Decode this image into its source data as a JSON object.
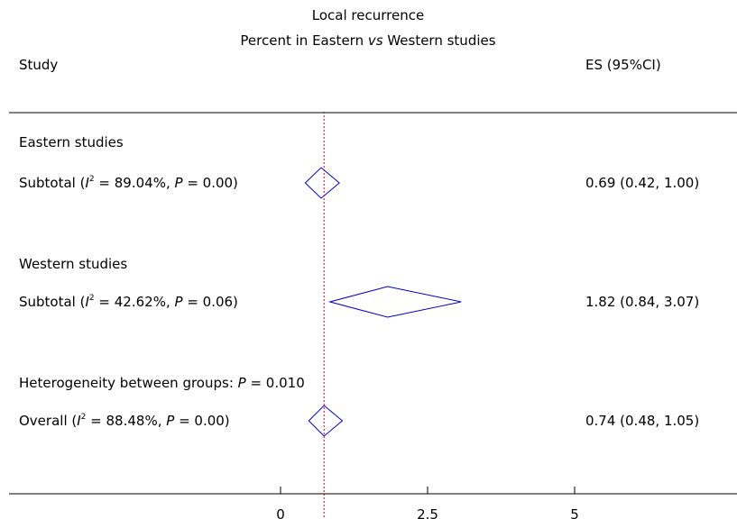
{
  "chart_data": {
    "type": "forest",
    "title": "Local recurrence",
    "subtitle_parts": [
      "Percent in Eastern ",
      "vs",
      " Western studies"
    ],
    "column_headers": {
      "study": "Study",
      "es": "ES (95%CI)"
    },
    "null_line": 0.74,
    "xlim": [
      0,
      7
    ],
    "xticks": [
      {
        "value": 0,
        "label": "0"
      },
      {
        "value": 2.5,
        "label": "2.5"
      },
      {
        "value": 5,
        "label": "5"
      }
    ],
    "rows": [
      {
        "kind": "group",
        "label": "Eastern studies"
      },
      {
        "kind": "subtotal",
        "label_prefix": "Subtotal (",
        "i2_symbol": "I",
        "i2_sup": "2",
        "label_mid": " = 89.04%, ",
        "p_symbol": "P",
        "label_end": " = 0.00)",
        "es": 0.69,
        "ci_low": 0.42,
        "ci_high": 1.0,
        "es_text": "0.69 (0.42, 1.00)"
      },
      {
        "kind": "spacer"
      },
      {
        "kind": "group",
        "label": "Western studies"
      },
      {
        "kind": "subtotal",
        "label_prefix": "Subtotal (",
        "i2_symbol": "I",
        "i2_sup": "2",
        "label_mid": " = 42.62%, ",
        "p_symbol": "P",
        "label_end": " = 0.06)",
        "es": 1.82,
        "ci_low": 0.84,
        "ci_high": 3.07,
        "es_text": "1.82 (0.84, 3.07)"
      },
      {
        "kind": "spacer"
      },
      {
        "kind": "note",
        "label_prefix": "Heterogeneity between groups: ",
        "p_symbol": "P",
        "label_end": " = 0.010"
      },
      {
        "kind": "overall",
        "label_prefix": "Overall (",
        "i2_symbol": "I",
        "i2_sup": "2",
        "label_mid": " = 88.48%, ",
        "p_symbol": "P",
        "label_end": " = 0.00)",
        "es": 0.74,
        "ci_low": 0.48,
        "ci_high": 1.05,
        "es_text": "0.74 (0.48, 1.05)"
      }
    ],
    "colors": {
      "diamond": "#0000cc",
      "null_line": "#e0002a",
      "axis": "#000000"
    }
  }
}
